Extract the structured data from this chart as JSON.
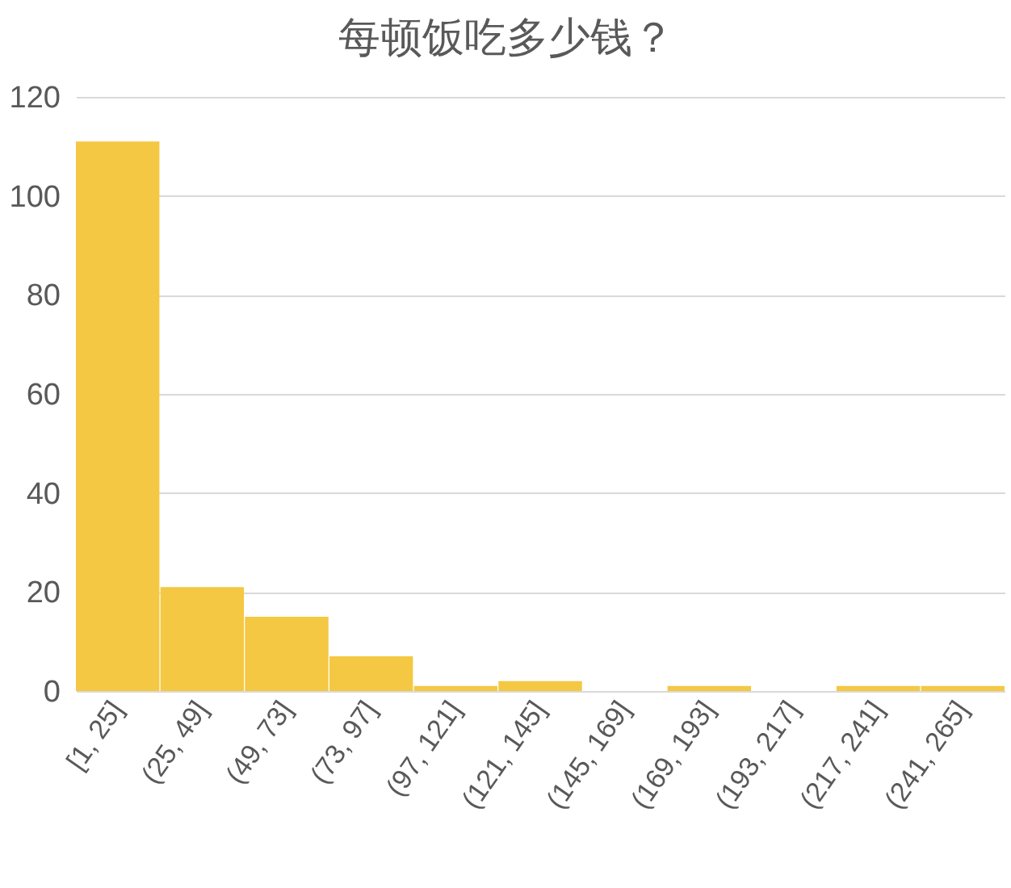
{
  "chart_data": {
    "type": "bar",
    "title": "每顿饭吃多少钱？",
    "categories": [
      "[1, 25]",
      "(25, 49]",
      "(49, 73]",
      "(73, 97]",
      "(97, 121]",
      "(121, 145]",
      "(145, 169]",
      "(169, 193]",
      "(193, 217]",
      "(217, 241]",
      "(241, 265]"
    ],
    "values": [
      111,
      21,
      15,
      7,
      1,
      2,
      0,
      1,
      0,
      1,
      1
    ],
    "color": "#f4c842",
    "ylim": [
      0,
      120
    ],
    "yticks": [
      0,
      20,
      40,
      60,
      80,
      100,
      120
    ],
    "grid": "y"
  }
}
